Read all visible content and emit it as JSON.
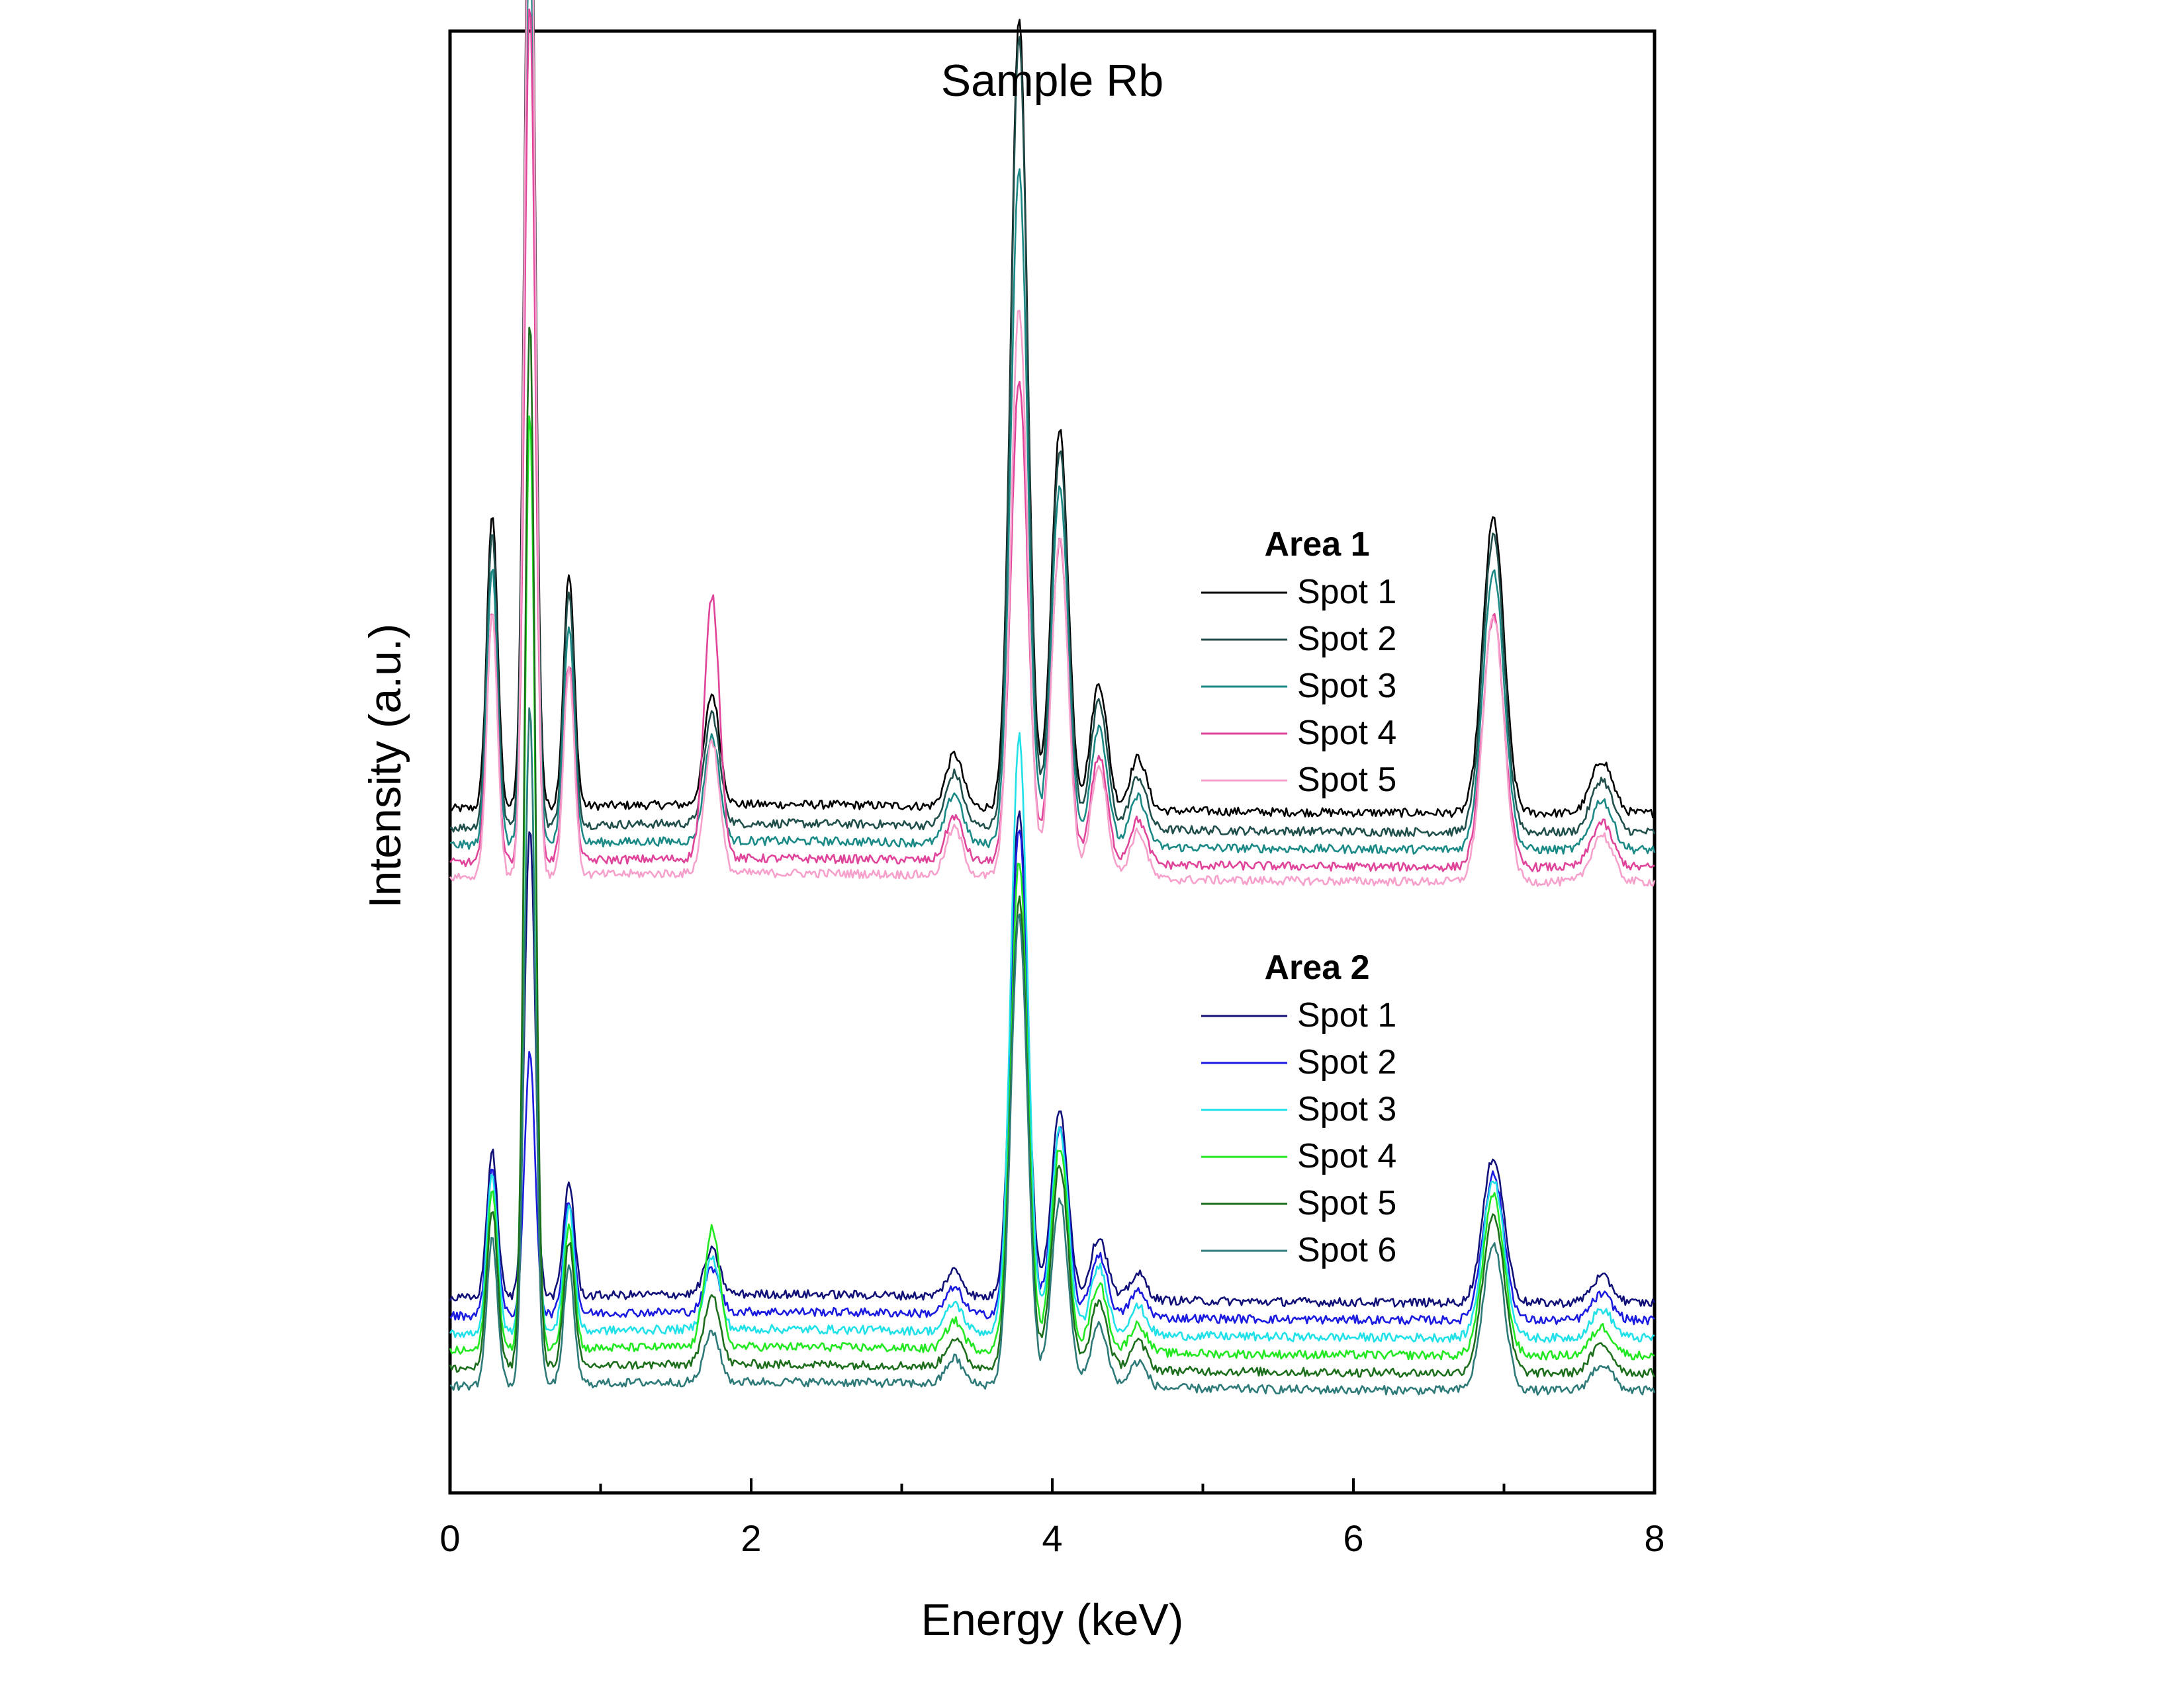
{
  "chart_data": {
    "type": "line",
    "title": "Sample Rb",
    "xlabel": "Energy (keV)",
    "ylabel": "Intensity (a.u.)",
    "xlim": [
      0,
      8
    ],
    "x_ticks": [
      "0",
      "2",
      "4",
      "6",
      "8"
    ],
    "y_ticks_shown": false,
    "grid": false,
    "legend_position": "right",
    "peaks_keV": [
      {
        "energy": 0.28,
        "relative_height": 0.28
      },
      {
        "energy": 0.53,
        "relative_height": 1.0
      },
      {
        "energy": 0.79,
        "relative_height": 0.22
      },
      {
        "energy": 1.74,
        "relative_height": 0.14
      },
      {
        "energy": 3.35,
        "relative_height": 0.05
      },
      {
        "energy": 3.78,
        "relative_height": 0.75
      },
      {
        "energy": 4.05,
        "relative_height": 0.36
      },
      {
        "energy": 4.31,
        "relative_height": 0.12
      },
      {
        "energy": 4.57,
        "relative_height": 0.05
      },
      {
        "energy": 6.93,
        "relative_height": 0.28
      },
      {
        "energy": 7.65,
        "relative_height": 0.05
      }
    ],
    "groups": [
      {
        "title": "Area 1",
        "series": [
          {
            "name": "Spot 1",
            "color": "#000000",
            "baseline": 0.465,
            "scale": 1.0,
            "peak_scales": {
              "0.53": 1.0,
              "1.74": 0.75,
              "3.78": 1.0
            }
          },
          {
            "name": "Spot 2",
            "color": "#1f4e4b",
            "baseline": 0.452,
            "scale": 1.0,
            "peak_scales": {
              "0.53": 0.98,
              "1.74": 0.75,
              "3.78": 1.0
            }
          },
          {
            "name": "Spot 3",
            "color": "#1b8a86",
            "baseline": 0.44,
            "scale": 0.95,
            "peak_scales": {
              "0.53": 0.92,
              "1.74": 0.75,
              "3.78": 0.9
            }
          },
          {
            "name": "Spot 4",
            "color": "#e0449a",
            "baseline": 0.428,
            "scale": 0.85,
            "peak_scales": {
              "0.53": 0.96,
              "1.74": 2.1,
              "3.78": 0.72
            }
          },
          {
            "name": "Spot 5",
            "color": "#f6a0cc",
            "baseline": 0.418,
            "scale": 0.9,
            "peak_scales": {
              "0.53": 1.15,
              "1.74": 1.0,
              "3.78": 0.8
            }
          }
        ]
      },
      {
        "title": "Area 2",
        "series": [
          {
            "name": "Spot 1",
            "color": "#101078",
            "baseline": 0.13,
            "scale": 0.55,
            "peak_scales": {
              "0.53": 0.9,
              "1.74": 0.6,
              "3.78": 1.25
            }
          },
          {
            "name": "Spot 2",
            "color": "#1a1ae0",
            "baseline": 0.118,
            "scale": 0.55,
            "peak_scales": {
              "0.53": 0.5,
              "1.74": 0.6,
              "3.78": 1.25
            }
          },
          {
            "name": "Spot 3",
            "color": "#20e0e8",
            "baseline": 0.106,
            "scale": 0.6,
            "peak_scales": {
              "0.53": 1.1,
              "1.74": 0.9,
              "3.78": 1.4
            }
          },
          {
            "name": "Spot 4",
            "color": "#22e822",
            "baseline": 0.094,
            "scale": 0.6,
            "peak_scales": {
              "0.53": 1.65,
              "1.74": 1.5,
              "3.78": 1.15
            }
          },
          {
            "name": "Spot 5",
            "color": "#1c6e1c",
            "baseline": 0.082,
            "scale": 0.6,
            "peak_scales": {
              "0.53": 1.85,
              "1.74": 0.9,
              "3.78": 1.1
            }
          },
          {
            "name": "Spot 6",
            "color": "#2d7a78",
            "baseline": 0.07,
            "scale": 0.55,
            "peak_scales": {
              "0.53": 1.3,
              "1.74": 0.7,
              "3.78": 1.2
            }
          }
        ]
      }
    ]
  }
}
